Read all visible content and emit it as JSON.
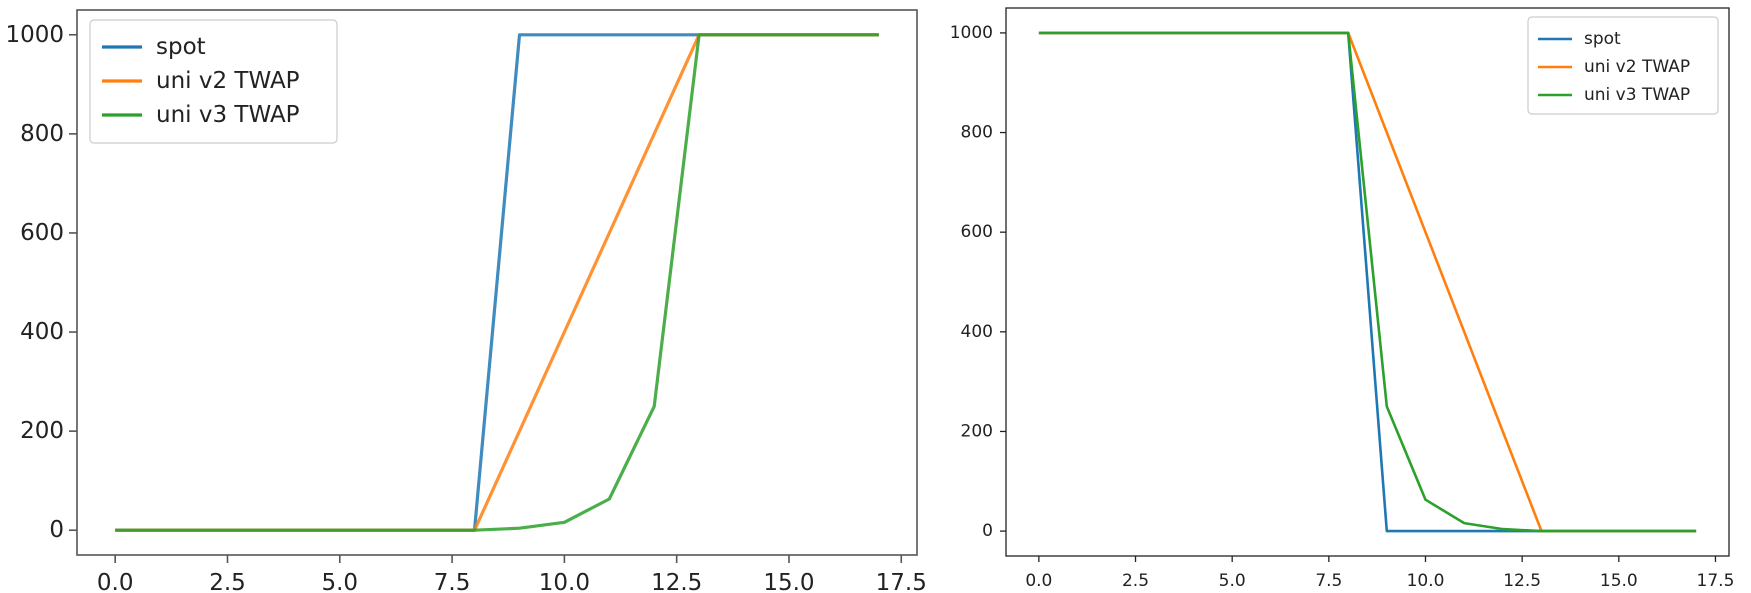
{
  "chart_data": [
    {
      "type": "line",
      "title": "",
      "xlabel": "",
      "ylabel": "",
      "xlim": [
        -0.85,
        17.85
      ],
      "ylim": [
        -50,
        1050
      ],
      "grid": false,
      "legend_position": "top-left",
      "x_ticks": [
        "0.0",
        "2.5",
        "5.0",
        "7.5",
        "10.0",
        "12.5",
        "15.0",
        "17.5"
      ],
      "y_ticks": [
        "0",
        "200",
        "400",
        "600",
        "800",
        "1000"
      ],
      "x": [
        0,
        1,
        2,
        3,
        4,
        5,
        6,
        7,
        8,
        9,
        10,
        11,
        12,
        13,
        14,
        15,
        16,
        17
      ],
      "series": [
        {
          "name": "spot",
          "color": "#1f77b4",
          "values": [
            0,
            0,
            0,
            0,
            0,
            0,
            0,
            0,
            0,
            1000,
            1000,
            1000,
            1000,
            1000,
            1000,
            1000,
            1000,
            1000
          ]
        },
        {
          "name": "uni v2 TWAP",
          "color": "#ff7f0e",
          "values": [
            0,
            0,
            0,
            0,
            0,
            0,
            0,
            0,
            0,
            200,
            400,
            600,
            800,
            1000,
            1000,
            1000,
            1000,
            1000
          ]
        },
        {
          "name": "uni v3 TWAP",
          "color": "#2ca02c",
          "values": [
            0,
            0,
            0,
            0,
            0,
            0,
            0,
            0,
            0,
            4,
            16,
            63,
            250,
            1000,
            1000,
            1000,
            1000,
            1000
          ]
        }
      ]
    },
    {
      "type": "line",
      "title": "",
      "xlabel": "",
      "ylabel": "",
      "xlim": [
        -0.85,
        17.85
      ],
      "ylim": [
        -50,
        1050
      ],
      "grid": false,
      "legend_position": "top-right",
      "x_ticks": [
        "0.0",
        "2.5",
        "5.0",
        "7.5",
        "10.0",
        "12.5",
        "15.0",
        "17.5"
      ],
      "y_ticks": [
        "0",
        "200",
        "400",
        "600",
        "800",
        "1000"
      ],
      "x": [
        0,
        1,
        2,
        3,
        4,
        5,
        6,
        7,
        8,
        9,
        10,
        11,
        12,
        13,
        14,
        15,
        16,
        17
      ],
      "series": [
        {
          "name": "spot",
          "color": "#1f77b4",
          "values": [
            1000,
            1000,
            1000,
            1000,
            1000,
            1000,
            1000,
            1000,
            1000,
            0,
            0,
            0,
            0,
            0,
            0,
            0,
            0,
            0
          ]
        },
        {
          "name": "uni v2 TWAP",
          "color": "#ff7f0e",
          "values": [
            1000,
            1000,
            1000,
            1000,
            1000,
            1000,
            1000,
            1000,
            1000,
            800,
            600,
            400,
            200,
            0,
            0,
            0,
            0,
            0
          ]
        },
        {
          "name": "uni v3 TWAP",
          "color": "#2ca02c",
          "values": [
            1000,
            1000,
            1000,
            1000,
            1000,
            1000,
            1000,
            1000,
            1000,
            250,
            63,
            16,
            4,
            0,
            0,
            0,
            0,
            0
          ]
        }
      ]
    }
  ]
}
